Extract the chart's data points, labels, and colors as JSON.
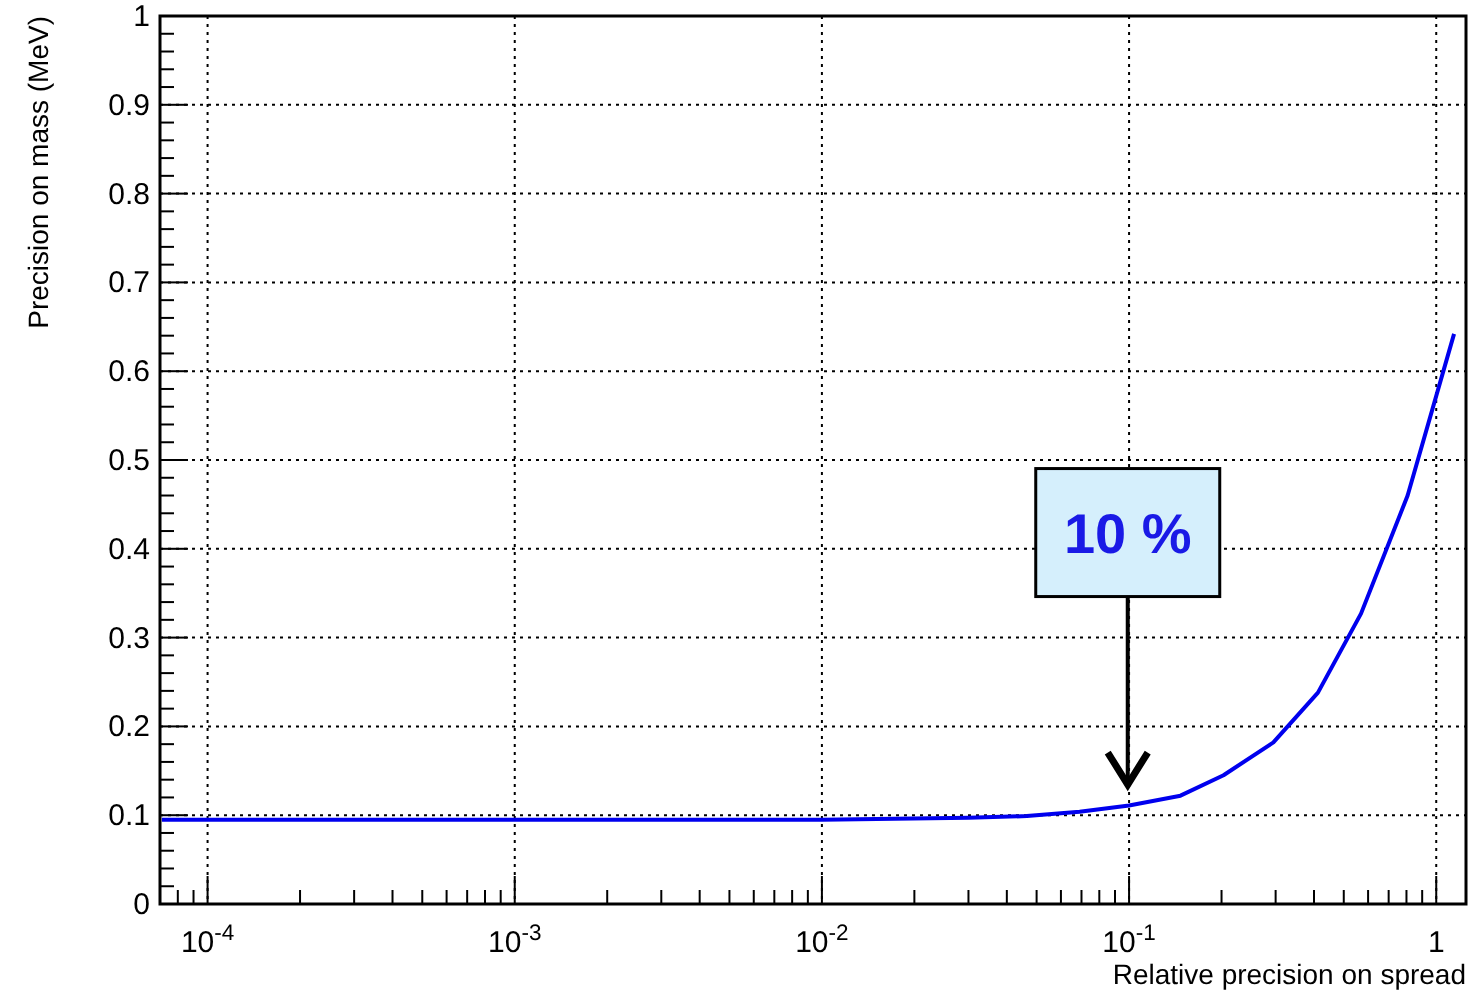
{
  "chart_data": {
    "type": "line",
    "xlabel": "Relative precision on spread",
    "ylabel": "Precision on mass (MeV)",
    "log": "x",
    "grid": true,
    "marker": "none",
    "line_style": "solid",
    "xlim": [
      7e-05,
      1.25
    ],
    "ylim": [
      0,
      1
    ],
    "xticks": [
      {
        "value": 7e-05,
        "label": null
      },
      {
        "value": 8e-05,
        "label": null
      },
      {
        "value": 9e-05,
        "label": null
      },
      {
        "value": 0.0001,
        "label": "10$^{-4}$"
      },
      {
        "value": 0.0002,
        "label": null
      },
      {
        "value": 0.0003,
        "label": null
      },
      {
        "value": 0.0004,
        "label": null
      },
      {
        "value": 0.0005,
        "label": null
      },
      {
        "value": 0.0006,
        "label": null
      },
      {
        "value": 0.0007,
        "label": null
      },
      {
        "value": 0.0008,
        "label": null
      },
      {
        "value": 0.0009,
        "label": null
      },
      {
        "value": 0.001,
        "label": "10$^{-3}$"
      },
      {
        "value": 0.002,
        "label": null
      },
      {
        "value": 0.003,
        "label": null
      },
      {
        "value": 0.004,
        "label": null
      },
      {
        "value": 0.005,
        "label": null
      },
      {
        "value": 0.006,
        "label": null
      },
      {
        "value": 0.007,
        "label": null
      },
      {
        "value": 0.008,
        "label": null
      },
      {
        "value": 0.009,
        "label": null
      },
      {
        "value": 0.01,
        "label": "10$^{-2}$"
      },
      {
        "value": 0.02,
        "label": null
      },
      {
        "value": 0.03,
        "label": null
      },
      {
        "value": 0.04,
        "label": null
      },
      {
        "value": 0.05,
        "label": null
      },
      {
        "value": 0.06,
        "label": null
      },
      {
        "value": 0.07,
        "label": null
      },
      {
        "value": 0.08,
        "label": null
      },
      {
        "value": 0.09,
        "label": null
      },
      {
        "value": 0.1,
        "label": "10$^{-1}$"
      },
      {
        "value": 0.2,
        "label": null
      },
      {
        "value": 0.3,
        "label": null
      },
      {
        "value": 0.4,
        "label": null
      },
      {
        "value": 0.5,
        "label": null
      },
      {
        "value": 0.6,
        "label": null
      },
      {
        "value": 0.7,
        "label": null
      },
      {
        "value": 0.8,
        "label": null
      },
      {
        "value": 0.9,
        "label": null
      },
      1
    ],
    "yticks": [
      0,
      0.1,
      0.2,
      0.3,
      0.4,
      0.5,
      0.6,
      0.7,
      0.8,
      0.9,
      1
    ],
    "series": [
      {
        "color": "#0000ee",
        "x": [
          7.1e-05,
          0.001,
          0.01,
          0.03,
          0.0465,
          0.069,
          0.1,
          0.147,
          0.203,
          0.295,
          0.412,
          0.569,
          0.807,
          1.143
        ],
        "values": [
          0.095,
          0.095,
          0.095,
          0.097,
          0.099,
          0.104,
          0.111,
          0.122,
          0.145,
          0.182,
          0.238,
          0.327,
          0.46,
          0.642
        ]
      }
    ],
    "annotations": [
      "10 %"
    ]
  }
}
